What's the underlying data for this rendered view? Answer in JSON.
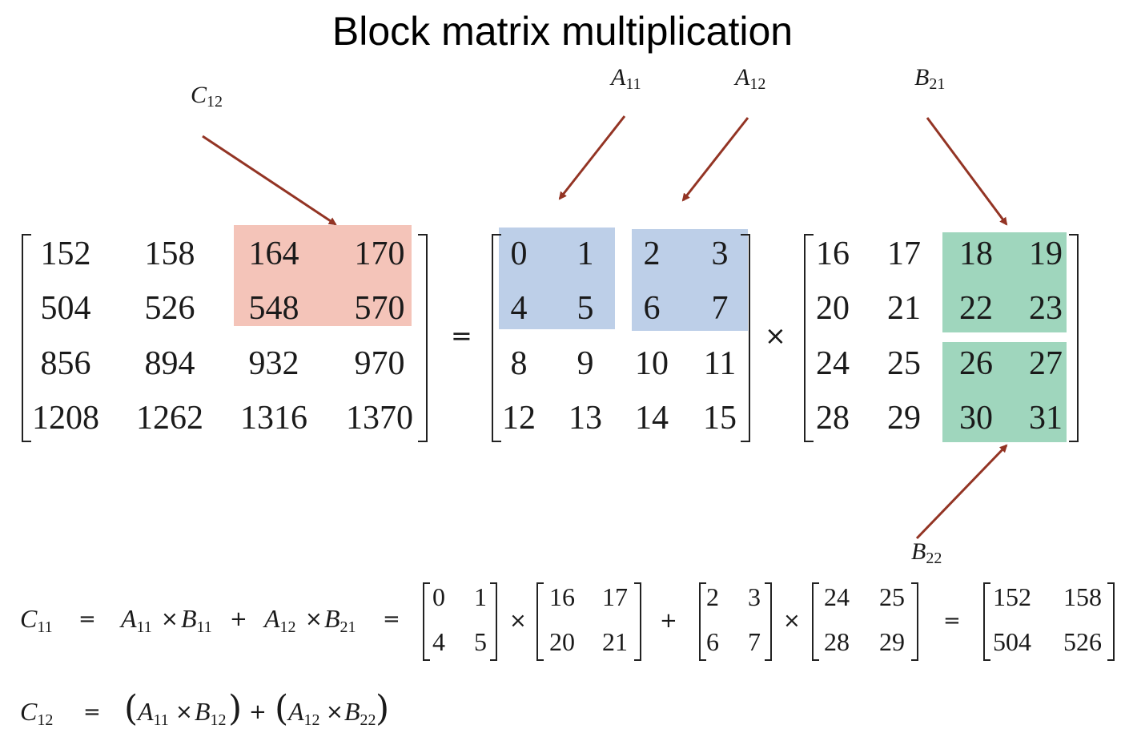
{
  "title": "Block matrix multiplication",
  "labels": {
    "C12": {
      "base": "C",
      "sub": "12"
    },
    "A11": {
      "base": "A",
      "sub": "11"
    },
    "A12": {
      "base": "A",
      "sub": "12"
    },
    "B21": {
      "base": "B",
      "sub": "21"
    },
    "B22": {
      "base": "B",
      "sub": "22"
    }
  },
  "matrix_C": [
    [
      "152",
      "158",
      "164",
      "170"
    ],
    [
      "504",
      "526",
      "548",
      "570"
    ],
    [
      "856",
      "894",
      "932",
      "970"
    ],
    [
      "1208",
      "1262",
      "1316",
      "1370"
    ]
  ],
  "matrix_A": [
    [
      "0",
      "1",
      "2",
      "3"
    ],
    [
      "4",
      "5",
      "6",
      "7"
    ],
    [
      "8",
      "9",
      "10",
      "11"
    ],
    [
      "12",
      "13",
      "14",
      "15"
    ]
  ],
  "matrix_B": [
    [
      "16",
      "17",
      "18",
      "19"
    ],
    [
      "20",
      "21",
      "22",
      "23"
    ],
    [
      "24",
      "25",
      "26",
      "27"
    ],
    [
      "28",
      "29",
      "30",
      "31"
    ]
  ],
  "operators": {
    "equals": "=",
    "times": "×",
    "plus": "+"
  },
  "eq1": {
    "lhs": {
      "base": "C",
      "sub": "11"
    },
    "t1a": {
      "base": "A",
      "sub": "11"
    },
    "t1b": {
      "base": "B",
      "sub": "11"
    },
    "t2a": {
      "base": "A",
      "sub": "12"
    },
    "t2b": {
      "base": "B",
      "sub": "21"
    },
    "m1": [
      [
        "0",
        "1"
      ],
      [
        "4",
        "5"
      ]
    ],
    "m2": [
      [
        "16",
        "17"
      ],
      [
        "20",
        "21"
      ]
    ],
    "m3": [
      [
        "2",
        "3"
      ],
      [
        "6",
        "7"
      ]
    ],
    "m4": [
      [
        "24",
        "25"
      ],
      [
        "28",
        "29"
      ]
    ],
    "m5": [
      [
        "152",
        "158"
      ],
      [
        "504",
        "526"
      ]
    ]
  },
  "eq2": {
    "lhs": {
      "base": "C",
      "sub": "12"
    },
    "t1a": {
      "base": "A",
      "sub": "11"
    },
    "t1b": {
      "base": "B",
      "sub": "12"
    },
    "t2a": {
      "base": "A",
      "sub": "12"
    },
    "t2b": {
      "base": "B",
      "sub": "22"
    },
    "lparen": "(",
    "rparen": ")"
  },
  "colors": {
    "red_block": "#f4c4b9",
    "blue_block": "#bdcfe8",
    "green_block": "#9fd6bd",
    "arrow": "#933424"
  }
}
